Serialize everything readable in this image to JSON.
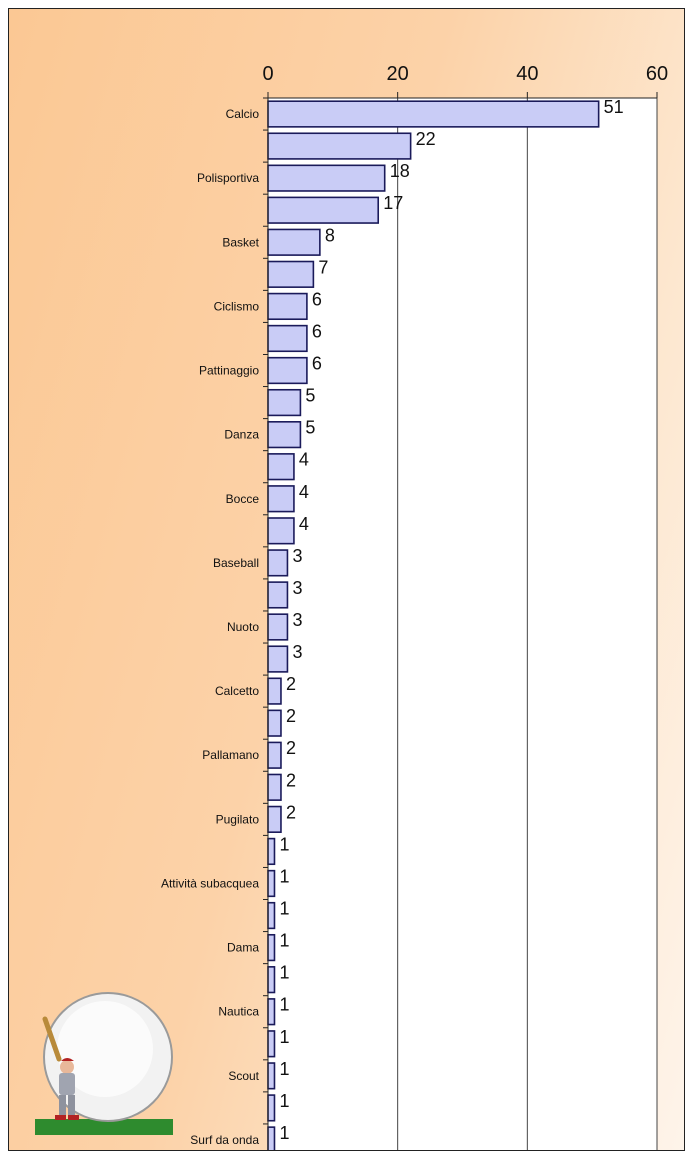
{
  "chart_data": {
    "type": "bar",
    "orientation": "horizontal",
    "xlim": [
      0,
      60
    ],
    "ticks": [
      0,
      20,
      40,
      60
    ],
    "grid": true,
    "legend": "none",
    "bar_color": "#c9ccf6",
    "bar_edge": "#1a1a5a",
    "category_labels": [
      "Calcio",
      "Polisportiva",
      "Basket",
      "Ciclismo",
      "Pattinaggio",
      "Danza",
      "Bocce",
      "Baseball",
      "Nuoto",
      "Calcetto",
      "Pallamano",
      "Pugilato",
      "Attività subacquea",
      "Dama",
      "Nautica",
      "Scout",
      "Surf da onda"
    ],
    "categories": [
      "Calcio",
      "",
      "Polisportiva",
      "",
      "Basket",
      "",
      "Ciclismo",
      "",
      "Pattinaggio",
      "",
      "Danza",
      "",
      "Bocce",
      "",
      "Baseball",
      "",
      "Nuoto",
      "",
      "Calcetto",
      "",
      "Pallamano",
      "",
      "Pugilato",
      "",
      "Attività subacquea",
      "",
      "Dama",
      "",
      "Nautica",
      "",
      "Scout",
      "",
      "Surf da onda"
    ],
    "values": [
      51,
      22,
      18,
      17,
      8,
      7,
      6,
      6,
      6,
      5,
      5,
      4,
      4,
      4,
      3,
      3,
      3,
      3,
      2,
      2,
      2,
      2,
      2,
      1,
      1,
      1,
      1,
      1,
      1,
      1,
      1,
      1,
      1
    ]
  }
}
